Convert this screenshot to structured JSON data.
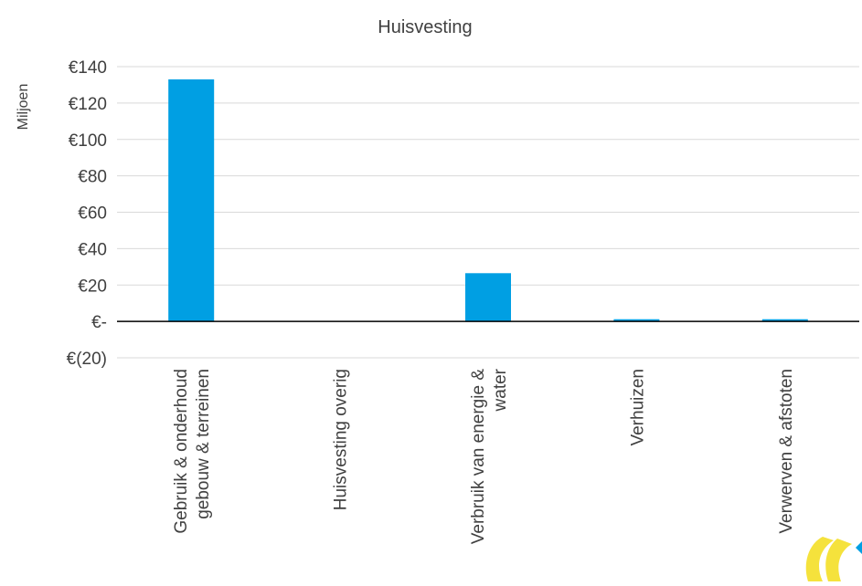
{
  "chart_data": {
    "type": "bar",
    "title": "Huisvesting",
    "xlabel": "",
    "ylabel": "Miljoen",
    "ylim": [
      -20,
      140
    ],
    "yticks": [
      {
        "value": 140,
        "label": "€140"
      },
      {
        "value": 120,
        "label": "€120"
      },
      {
        "value": 100,
        "label": "€100"
      },
      {
        "value": 80,
        "label": "€80"
      },
      {
        "value": 60,
        "label": "€60"
      },
      {
        "value": 40,
        "label": "€40"
      },
      {
        "value": 20,
        "label": "€20"
      },
      {
        "value": 0,
        "label": "€-"
      },
      {
        "value": -20,
        "label": "€(20)"
      }
    ],
    "categories": [
      [
        "Gebruik & onderhoud",
        "gebouw & terreinen"
      ],
      [
        "Huisvesting overig"
      ],
      [
        "Verbruik van energie &",
        "water"
      ],
      [
        "Verhuizen"
      ],
      [
        "Verwerven & afstoten"
      ]
    ],
    "values": [
      133,
      0,
      26.5,
      1.2,
      1.2
    ],
    "grid": true,
    "bar_color": "#009FE3",
    "legend": "none"
  },
  "logo": {
    "colors": [
      "#F5E23C",
      "#009FE3"
    ],
    "icon": "corner-logo-icon"
  }
}
